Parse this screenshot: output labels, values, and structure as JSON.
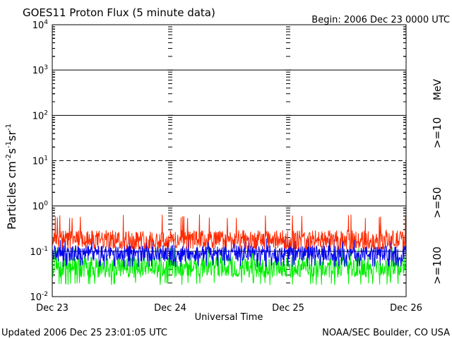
{
  "chart_data": {
    "type": "line",
    "title": "GOES11 Proton Flux (5 minute data)",
    "begin_label": "Begin: 2006 Dec 23 0000 UTC",
    "footer_left": "Updated 2006 Dec 25 23:01:05 UTC",
    "footer_right": "NOAA/SEC Boulder, CO USA",
    "xlabel": "Universal Time",
    "ylabel": "Particles cm⁻²s⁻¹sr⁻¹",
    "y_scale": "log",
    "ylim": [
      0.01,
      10000
    ],
    "y_ticks": [
      {
        "value": 0.01,
        "base": "10",
        "exp": "-2"
      },
      {
        "value": 0.1,
        "base": "10",
        "exp": "-1"
      },
      {
        "value": 1,
        "base": "10",
        "exp": "0"
      },
      {
        "value": 10,
        "base": "10",
        "exp": "1"
      },
      {
        "value": 100,
        "base": "10",
        "exp": "2"
      },
      {
        "value": 1000,
        "base": "10",
        "exp": "3"
      },
      {
        "value": 10000,
        "base": "10",
        "exp": "4"
      }
    ],
    "x_ticks": [
      "Dec 23",
      "Dec 24",
      "Dec 25",
      "Dec 26"
    ],
    "xlim_days": [
      0,
      3
    ],
    "unit_label": "MeV",
    "series": [
      {
        "name": ">=10",
        "color": "#ff2a00",
        "min": 0.11,
        "max": 0.65,
        "typical": 0.18
      },
      {
        "name": ">=50",
        "color": "#0000ee",
        "min": 0.045,
        "max": 0.2,
        "typical": 0.09
      },
      {
        "name": ">=100",
        "color": "#00ee00",
        "min": 0.018,
        "max": 0.13,
        "typical": 0.045
      }
    ]
  }
}
